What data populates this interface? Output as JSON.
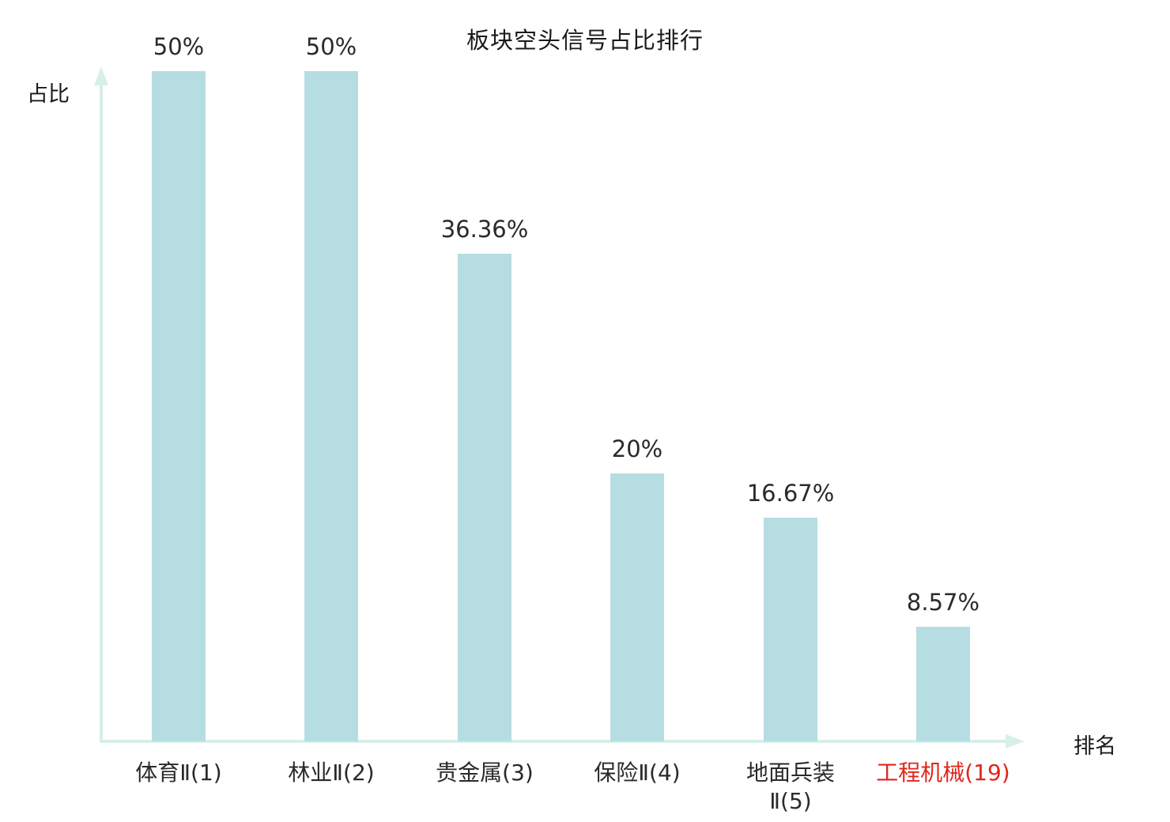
{
  "chart_data": {
    "type": "bar",
    "title": "板块空头信号占比排行",
    "xlabel": "排名",
    "ylabel": "占比",
    "categories": [
      "体育Ⅱ(1)",
      "林业Ⅱ(2)",
      "贵金属(3)",
      "保险Ⅱ(4)",
      "地面兵装\nⅡ(5)",
      "工程机械(19)"
    ],
    "values": [
      50,
      50,
      36.36,
      20,
      16.67,
      8.57
    ],
    "value_labels": [
      "50%",
      "50%",
      "36.36%",
      "20%",
      "16.67%",
      "8.57%"
    ],
    "ylim": [
      0,
      50
    ],
    "grid": false,
    "legend": false,
    "bar_color": "#b6dde2",
    "axis_color": "#d8efe9",
    "label_color": "#2a2a2a",
    "highlight_index": 5,
    "highlight_color": "#e0261c"
  }
}
